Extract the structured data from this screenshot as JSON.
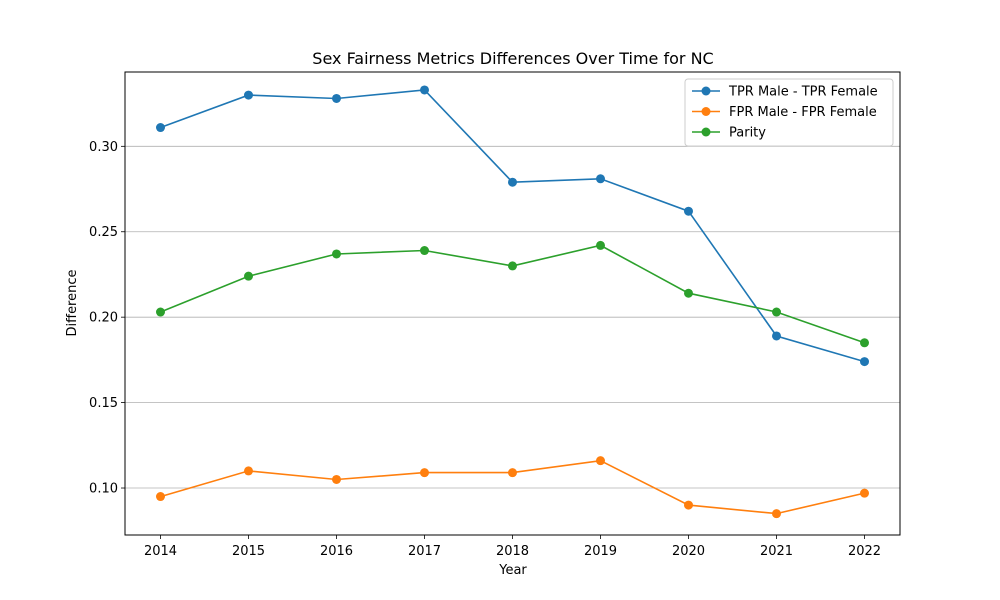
{
  "chart_data": {
    "type": "line",
    "title": "Sex Fairness Metrics Differences Over Time for NC",
    "xlabel": "Year",
    "ylabel": "Difference",
    "categories": [
      "2014",
      "2015",
      "2016",
      "2017",
      "2018",
      "2019",
      "2020",
      "2021",
      "2022"
    ],
    "ylim": [
      0.0725,
      0.3435
    ],
    "yticks": [
      "0.10",
      "0.15",
      "0.20",
      "0.25",
      "0.30"
    ],
    "grid": "y-axis major gridlines",
    "legend_position": "top-right",
    "series": [
      {
        "name": "TPR Male - TPR Female",
        "color": "#1f77b4",
        "marker": "circle",
        "values": [
          0.311,
          0.33,
          0.328,
          0.333,
          0.279,
          0.281,
          0.262,
          0.189,
          0.174
        ]
      },
      {
        "name": "FPR Male - FPR Female",
        "color": "#ff7f0e",
        "marker": "circle",
        "values": [
          0.095,
          0.11,
          0.105,
          0.109,
          0.109,
          0.116,
          0.09,
          0.085,
          0.097
        ]
      },
      {
        "name": "Parity",
        "color": "#2ca02c",
        "marker": "circle",
        "values": [
          0.203,
          0.224,
          0.237,
          0.239,
          0.23,
          0.242,
          0.214,
          0.203,
          0.185
        ]
      }
    ]
  }
}
